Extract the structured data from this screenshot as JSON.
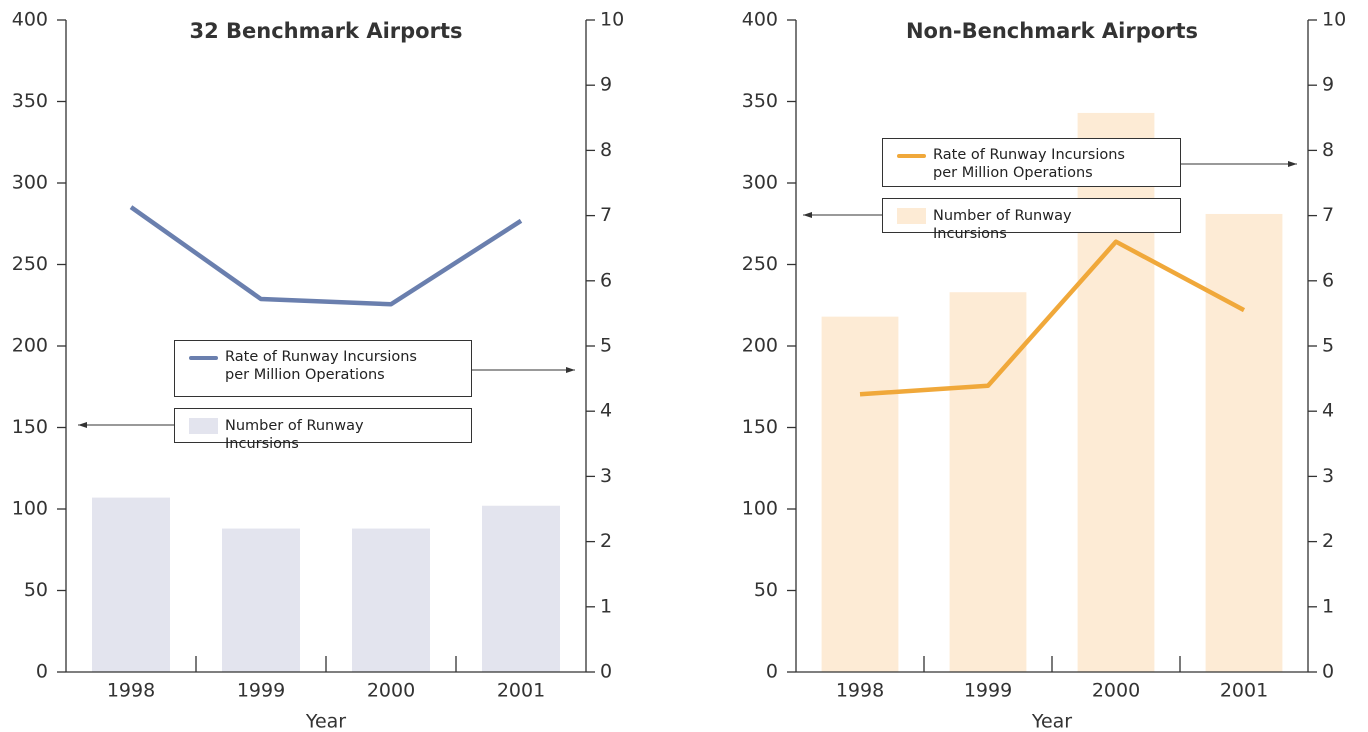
{
  "chart_data": [
    {
      "type": "bar_line",
      "title": "32 Benchmark Airports",
      "xlabel": "Year",
      "categories": [
        "1998",
        "1999",
        "2000",
        "2001"
      ],
      "ylim": [
        0,
        400
      ],
      "yticks": [
        0,
        50,
        100,
        150,
        200,
        250,
        300,
        350,
        400
      ],
      "y2lim": [
        0,
        10
      ],
      "y2ticks": [
        0,
        1,
        2,
        3,
        4,
        5,
        6,
        7,
        8,
        9,
        10
      ],
      "series": [
        {
          "name": "Number of Runway Incursions",
          "type": "bar",
          "color": "#e3e4ee",
          "values": [
            107,
            88,
            88,
            102
          ]
        },
        {
          "name": "Rate of Runway Incursions per Million Operations",
          "type": "line",
          "axis": "y2",
          "color": "#6a7fae",
          "values": [
            7.13,
            5.72,
            5.64,
            6.92
          ]
        }
      ]
    },
    {
      "type": "bar_line",
      "title": "Non-Benchmark Airports",
      "xlabel": "Year",
      "categories": [
        "1998",
        "1999",
        "2000",
        "2001"
      ],
      "ylim": [
        0,
        400
      ],
      "yticks": [
        0,
        50,
        100,
        150,
        200,
        250,
        300,
        350,
        400
      ],
      "y2lim": [
        0,
        10
      ],
      "y2ticks": [
        0,
        1,
        2,
        3,
        4,
        5,
        6,
        7,
        8,
        9,
        10
      ],
      "series": [
        {
          "name": "Number of Runway Incursions",
          "type": "bar",
          "color": "#fdebd5",
          "values": [
            218,
            233,
            343,
            281
          ]
        },
        {
          "name": "Rate of Runway Incursions per Million Operations",
          "type": "line",
          "axis": "y2",
          "color": "#f0a83a",
          "values": [
            4.26,
            4.39,
            6.6,
            5.55
          ]
        }
      ]
    }
  ]
}
